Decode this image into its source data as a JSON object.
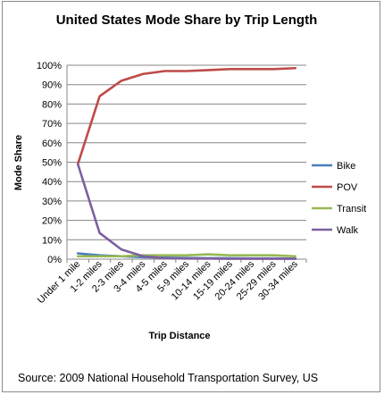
{
  "chart_data": {
    "type": "line",
    "title": "United States Mode Share by Trip Length",
    "xlabel": "Trip Distance",
    "ylabel": "Mode Share",
    "source": "Source: 2009  National Household Transportation Survey, US",
    "categories": [
      "Under 1 mile",
      "1-2 miles",
      "2-3 miles",
      "3-4 miles",
      "4-5 miles",
      "5-9 miles",
      "10-14 miles",
      "15-19 miles",
      "20-24 miles",
      "25-29 miles",
      "30-34 miles"
    ],
    "y_ticks": [
      "0%",
      "10%",
      "20%",
      "30%",
      "40%",
      "50%",
      "60%",
      "70%",
      "80%",
      "90%",
      "100%"
    ],
    "ylim": [
      0,
      100
    ],
    "legend_position": "right",
    "grid": true,
    "series": [
      {
        "name": "Bike",
        "color": "#4a7ebb",
        "values": [
          3,
          2,
          1.5,
          1,
          0.8,
          0.6,
          0.5,
          0.5,
          0.4,
          0.4,
          0.3
        ]
      },
      {
        "name": "POV",
        "color": "#be4b48",
        "values": [
          49,
          84,
          92,
          95.5,
          97,
          97,
          97.5,
          98,
          98,
          98,
          98.5
        ]
      },
      {
        "name": "Transit",
        "color": "#98b954",
        "values": [
          1.5,
          1.5,
          1.5,
          2,
          2,
          2,
          2.5,
          2,
          2,
          2,
          1.5
        ]
      },
      {
        "name": "Walk",
        "color": "#7d60a0",
        "values": [
          49,
          13.5,
          5,
          1.5,
          0.5,
          0.3,
          0.3,
          0.2,
          0.2,
          0.2,
          0.2
        ]
      }
    ]
  }
}
